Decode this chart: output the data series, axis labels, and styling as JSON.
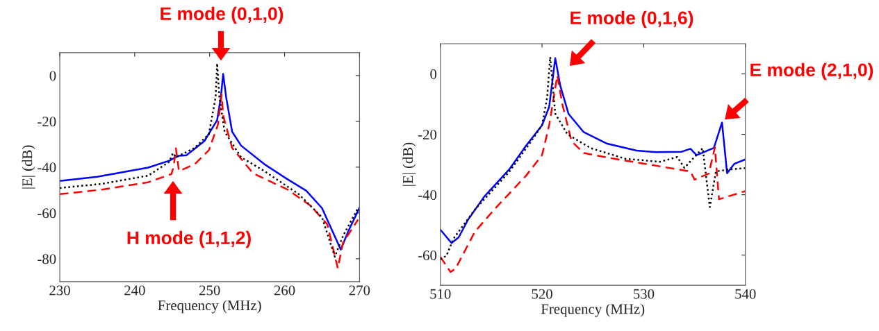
{
  "chart_data": [
    {
      "type": "line",
      "xlabel": "Frequency (MHz)",
      "ylabel": "|E| (dB)",
      "xlim": [
        230,
        270
      ],
      "xticks": [
        230,
        240,
        250,
        260,
        270
      ],
      "ylim": [
        -90,
        10
      ],
      "yticks": [
        -80,
        -60,
        -40,
        -20,
        0
      ],
      "grid": false,
      "marker": "none",
      "annotations": [
        "E mode (0,1,0)",
        "H mode (1,1,2)"
      ],
      "series": [
        {
          "color": "#0000ff",
          "line_style": "solid",
          "x": [
            230,
            235,
            241.8,
            244.6,
            245.9,
            246.9,
            249.3,
            251,
            251.5,
            251.8,
            252.2,
            253,
            254.2,
            257.3,
            260.4,
            262.9,
            265,
            267.5,
            268.5,
            270
          ],
          "values": [
            -46,
            -44.2,
            -40.2,
            -37.2,
            -35,
            -34.8,
            -28.6,
            -19.5,
            -9.4,
            0.7,
            -9.4,
            -24.5,
            -30.6,
            -38.7,
            -45.3,
            -50.3,
            -57.9,
            -76,
            -68,
            -57.7
          ]
        },
        {
          "color": "#ff0000",
          "line_style": "dashed",
          "x": [
            230,
            235.6,
            241.8,
            244.9,
            245.2,
            245.5,
            245.9,
            248,
            249.9,
            251.1,
            251.6,
            251.8,
            253,
            255.8,
            260.4,
            263.5,
            265.7,
            267.1,
            267.8,
            269.8
          ],
          "values": [
            -51.8,
            -49.8,
            -46.6,
            -43,
            -39.7,
            -31.8,
            -41.7,
            -38.7,
            -32.6,
            -21.5,
            -8.4,
            -17.5,
            -31.6,
            -42.7,
            -49.8,
            -56.9,
            -65,
            -84.1,
            -73,
            -62.9
          ]
        },
        {
          "color": "#000000",
          "line_style": "dotted",
          "x": [
            230,
            235.6,
            241.8,
            244.6,
            245.1,
            245.5,
            248,
            249.9,
            250.8,
            251,
            251.3,
            252,
            254.2,
            257.3,
            261.9,
            265,
            266.7,
            267.8,
            269.8
          ],
          "values": [
            -49.1,
            -47.3,
            -43.7,
            -37.7,
            -33.9,
            -35.7,
            -31.6,
            -25.6,
            -9.4,
            5.3,
            -9.4,
            -24.5,
            -35.7,
            -41.7,
            -51.8,
            -61.9,
            -79.1,
            -70,
            -57.9
          ]
        }
      ]
    },
    {
      "type": "line",
      "xlabel": "Frequency (MHz)",
      "ylabel": "|E| (dB)",
      "xlim": [
        510,
        540
      ],
      "xticks": [
        510,
        520,
        530,
        540
      ],
      "ylim": [
        -70,
        10
      ],
      "yticks": [
        -60,
        -40,
        -20,
        0
      ],
      "grid": false,
      "marker": "none",
      "annotations": [
        "E mode (0,1,6)",
        "E mode (2,1,0)"
      ],
      "series": [
        {
          "color": "#0000ff",
          "line_style": "solid",
          "x": [
            510,
            511.1,
            511.8,
            512.7,
            514.3,
            516.8,
            518.4,
            520,
            520.7,
            521.3,
            521.8,
            522.6,
            524.1,
            526.4,
            529.3,
            531.2,
            533.7,
            534.6,
            535.2,
            536.9,
            537.7,
            538.2,
            538.9,
            540
          ],
          "values": [
            -51.6,
            -56,
            -54.1,
            -48.4,
            -40.7,
            -31.5,
            -23.9,
            -17,
            -10.9,
            5.2,
            -4,
            -13.2,
            -19.3,
            -23.1,
            -25.4,
            -25.9,
            -25.8,
            -24.8,
            -26.9,
            -24.5,
            -16.1,
            -32.9,
            -29.8,
            -28.3
          ]
        },
        {
          "color": "#ff0000",
          "line_style": "dashed",
          "x": [
            510,
            511,
            511.5,
            513.4,
            515.6,
            518.4,
            520,
            520.7,
            521.5,
            522,
            522.9,
            524.1,
            527.1,
            530.5,
            534.6,
            535,
            536.4,
            537,
            537.4,
            540
          ],
          "values": [
            -60.6,
            -65.6,
            -64.4,
            -52.2,
            -43.8,
            -33.8,
            -26.9,
            -17,
            -0.5,
            -10.1,
            -22.3,
            -26.2,
            -28.1,
            -30,
            -32.3,
            -35,
            -33,
            -24.3,
            -41.5,
            -38.8
          ]
        },
        {
          "color": "#000000",
          "line_style": "dotted",
          "x": [
            510,
            510.6,
            511.3,
            513.4,
            516.8,
            518.6,
            520,
            520.5,
            520.8,
            521.3,
            522.5,
            524.8,
            528.2,
            531.6,
            533.3,
            534,
            535.8,
            536.5,
            537.1,
            538.2,
            540
          ],
          "values": [
            -61.4,
            -60.2,
            -54.5,
            -44.9,
            -32.3,
            -23.9,
            -17,
            -7.8,
            5.6,
            -13.2,
            -20,
            -24.6,
            -28.1,
            -29.1,
            -27.5,
            -31.1,
            -24.6,
            -44.1,
            -32.3,
            -31.7,
            -31.2
          ]
        }
      ]
    }
  ]
}
